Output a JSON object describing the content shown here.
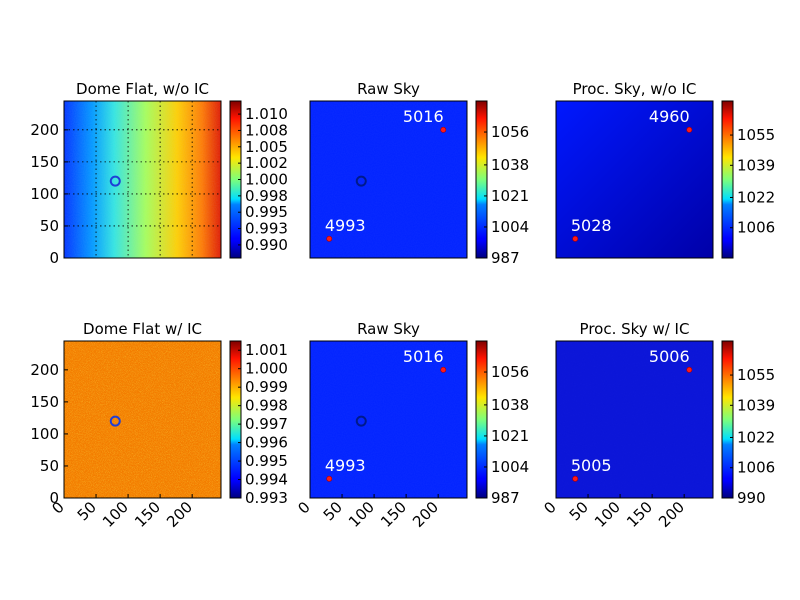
{
  "chart_data": [
    {
      "type": "heatmap",
      "title": "Dome Flat, w/o IC",
      "image": "gradient_flat",
      "colormap": "jet",
      "extent": [
        0,
        245
      ],
      "xlim": [
        0,
        245
      ],
      "ylim": [
        0,
        245
      ],
      "grid": true,
      "show_xticks": false,
      "yticks": [
        "0",
        "50",
        "100",
        "150",
        "200"
      ],
      "ytick_values": [
        0,
        50,
        100,
        150,
        200
      ],
      "colorbar": {
        "range": [
          0.988,
          1.012
        ],
        "ticks": [
          "0.990",
          "0.993",
          "0.995",
          "0.998",
          "1.000",
          "1.002",
          "1.005",
          "1.008",
          "1.010"
        ],
        "tick_values": [
          0.99,
          0.9925,
          0.995,
          0.9975,
          1.0,
          1.0025,
          1.005,
          1.0075,
          1.01
        ]
      },
      "ring": {
        "x": 80,
        "y": 120,
        "color": "#1f3fd6"
      },
      "points": []
    },
    {
      "type": "heatmap",
      "title": "Raw Sky",
      "image": "flat_blue",
      "colormap": "jet",
      "extent": [
        0,
        245
      ],
      "xlim": [
        0,
        245
      ],
      "ylim": [
        0,
        245
      ],
      "grid": false,
      "show_xticks": false,
      "yticks": [],
      "ytick_values": [],
      "colorbar": {
        "range": [
          987,
          1073
        ],
        "ticks": [
          "987",
          "1004",
          "1021",
          "1038",
          "1056"
        ],
        "tick_values": [
          987,
          1004,
          1021,
          1038,
          1056
        ]
      },
      "ring": {
        "x": 80,
        "y": 120,
        "color": "#001a8c"
      },
      "points": [
        {
          "x": 30,
          "y": 30,
          "label": "4993"
        },
        {
          "x": 208,
          "y": 200,
          "label": "5016"
        }
      ]
    },
    {
      "type": "heatmap",
      "title": "Proc. Sky, w/o IC",
      "image": "blue_gradient",
      "colormap": "jet",
      "extent": [
        0,
        245
      ],
      "xlim": [
        0,
        245
      ],
      "ylim": [
        0,
        245
      ],
      "grid": false,
      "show_xticks": false,
      "yticks": [],
      "ytick_values": [],
      "colorbar": {
        "range": [
          990,
          1073
        ],
        "ticks": [
          "1006",
          "1022",
          "1039",
          "1055"
        ],
        "tick_values": [
          1006,
          1022,
          1039,
          1055
        ]
      },
      "ring": null,
      "points": [
        {
          "x": 30,
          "y": 30,
          "label": "5028"
        },
        {
          "x": 208,
          "y": 200,
          "label": "4960"
        }
      ]
    },
    {
      "type": "heatmap",
      "title": "Dome Flat w/ IC",
      "image": "noise_flat",
      "colormap": "jet",
      "extent": [
        0,
        245
      ],
      "xlim": [
        0,
        245
      ],
      "ylim": [
        0,
        245
      ],
      "grid": false,
      "show_xticks": true,
      "xticks": [
        "0",
        "50",
        "100",
        "150",
        "200"
      ],
      "xtick_values": [
        0,
        50,
        100,
        150,
        200
      ],
      "yticks": [
        "0",
        "50",
        "100",
        "150",
        "200"
      ],
      "ytick_values": [
        0,
        50,
        100,
        150,
        200
      ],
      "colorbar": {
        "range": [
          0.993,
          1.0015
        ],
        "ticks": [
          "0.993",
          "0.994",
          "0.995",
          "0.996",
          "0.997",
          "0.998",
          "0.999",
          "1.000",
          "1.001"
        ],
        "tick_values": [
          0.993,
          0.994,
          0.995,
          0.996,
          0.997,
          0.998,
          0.999,
          1.0,
          1.001
        ]
      },
      "ring": {
        "x": 80,
        "y": 120,
        "color": "#1f3fd6"
      },
      "points": []
    },
    {
      "type": "heatmap",
      "title": "Raw Sky",
      "image": "flat_blue",
      "colormap": "jet",
      "extent": [
        0,
        245
      ],
      "xlim": [
        0,
        245
      ],
      "ylim": [
        0,
        245
      ],
      "grid": false,
      "show_xticks": true,
      "xticks": [
        "0",
        "50",
        "100",
        "150",
        "200"
      ],
      "xtick_values": [
        0,
        50,
        100,
        150,
        200
      ],
      "yticks": [],
      "ytick_values": [],
      "colorbar": {
        "range": [
          987,
          1073
        ],
        "ticks": [
          "987",
          "1004",
          "1021",
          "1038",
          "1056"
        ],
        "tick_values": [
          987,
          1004,
          1021,
          1038,
          1056
        ]
      },
      "ring": {
        "x": 80,
        "y": 120,
        "color": "#001a8c"
      },
      "points": [
        {
          "x": 30,
          "y": 30,
          "label": "4993"
        },
        {
          "x": 208,
          "y": 200,
          "label": "5016"
        }
      ]
    },
    {
      "type": "heatmap",
      "title": "Proc. Sky w/ IC",
      "image": "dark_blue",
      "colormap": "jet",
      "extent": [
        0,
        245
      ],
      "xlim": [
        0,
        245
      ],
      "ylim": [
        0,
        245
      ],
      "grid": false,
      "show_xticks": true,
      "xticks": [
        "0",
        "50",
        "100",
        "150",
        "200"
      ],
      "xtick_values": [
        0,
        50,
        100,
        150,
        200
      ],
      "yticks": [],
      "ytick_values": [],
      "colorbar": {
        "range": [
          990,
          1073
        ],
        "ticks": [
          "990",
          "1006",
          "1022",
          "1039",
          "1055"
        ],
        "tick_values": [
          990,
          1006,
          1022,
          1039,
          1055
        ]
      },
      "ring": null,
      "points": [
        {
          "x": 30,
          "y": 30,
          "label": "5005"
        },
        {
          "x": 208,
          "y": 200,
          "label": "5006"
        }
      ]
    }
  ]
}
